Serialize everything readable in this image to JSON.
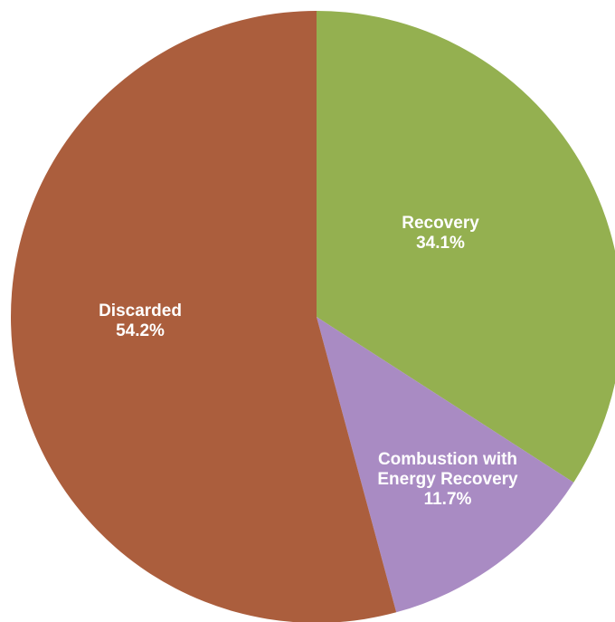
{
  "chart_data": {
    "type": "pie",
    "start_angle_deg": 0,
    "direction": "clockwise",
    "slices": [
      {
        "label_lines": [
          "Recovery"
        ],
        "value_text": "34.1%",
        "value": 34.1,
        "color": "#94b050"
      },
      {
        "label_lines": [
          "Combustion with",
          "Energy Recovery"
        ],
        "value_text": "11.7%",
        "value": 11.7,
        "color": "#a98bc3"
      },
      {
        "label_lines": [
          "Discarded"
        ],
        "value_text": "54.2%",
        "value": 54.2,
        "color": "#ab5e3d"
      }
    ]
  }
}
